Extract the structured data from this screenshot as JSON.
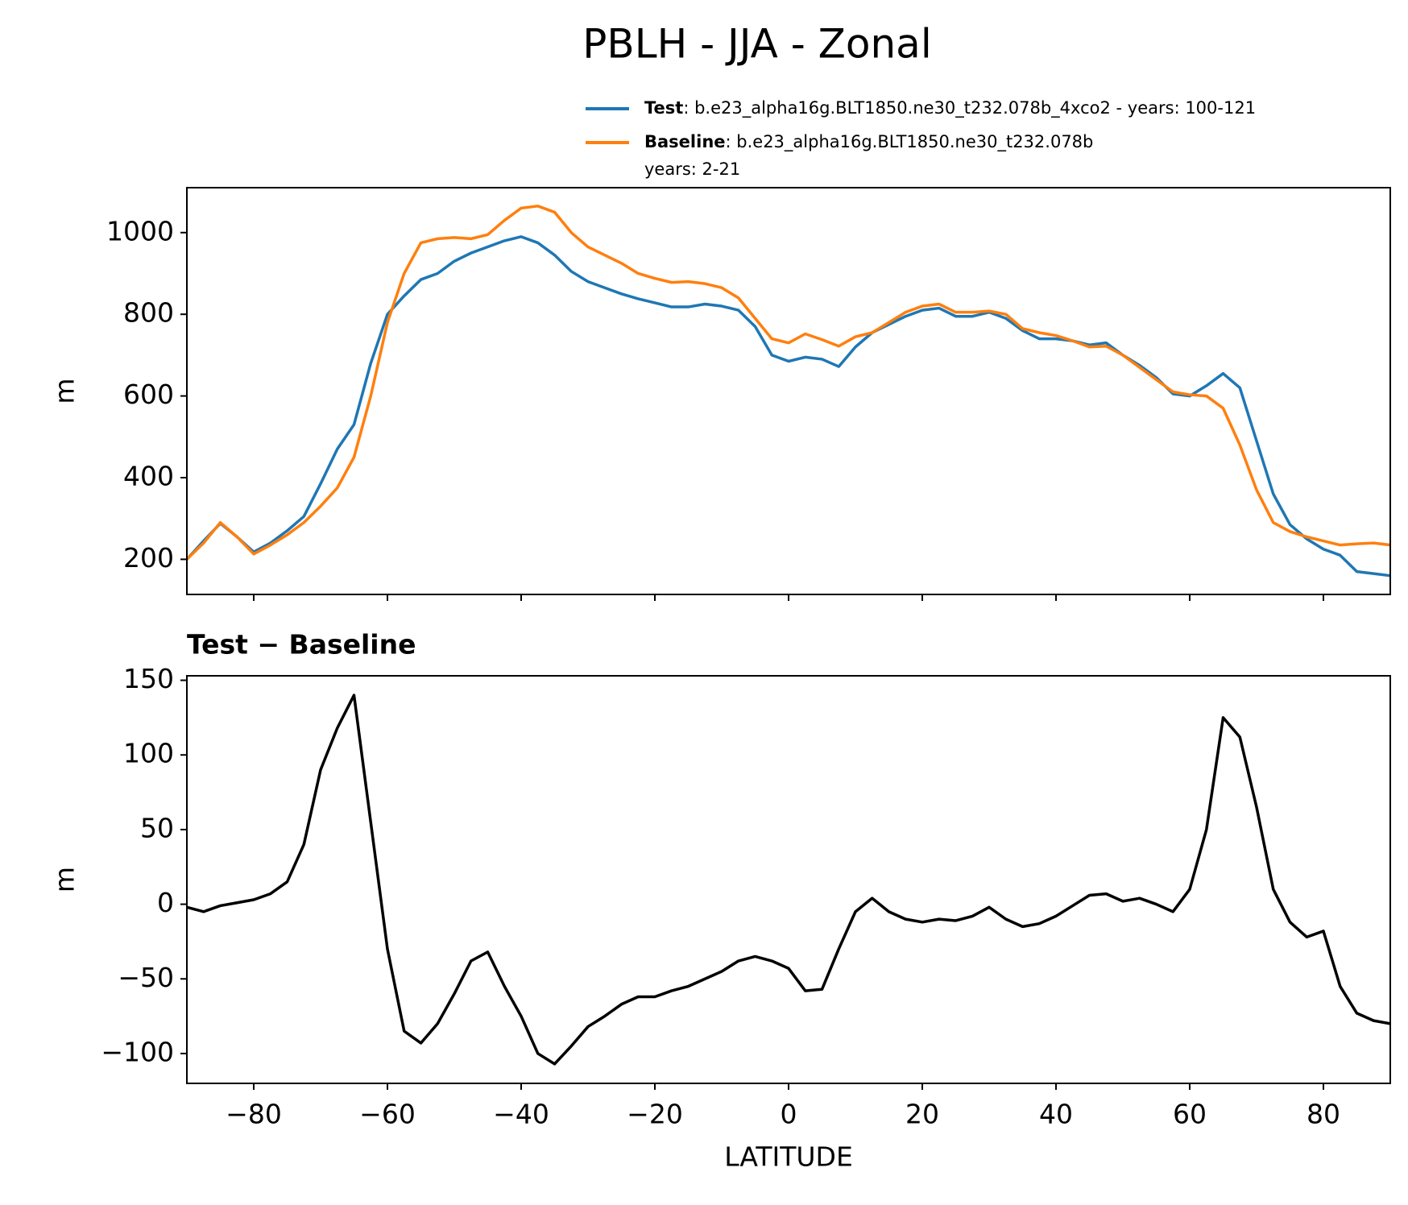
{
  "chart_data": [
    {
      "type": "line",
      "title": "PBLH - JJA - Zonal",
      "ylabel": "m",
      "x": [
        -90,
        -87.5,
        -85,
        -82.5,
        -80,
        -77.5,
        -75,
        -72.5,
        -70,
        -67.5,
        -65,
        -62.5,
        -60,
        -57.5,
        -55,
        -52.5,
        -50,
        -47.5,
        -45,
        -42.5,
        -40,
        -37.5,
        -35,
        -32.5,
        -30,
        -27.5,
        -25,
        -22.5,
        -20,
        -17.5,
        -15,
        -12.5,
        -10,
        -7.5,
        -5,
        -2.5,
        0,
        2.5,
        5,
        7.5,
        10,
        12.5,
        15,
        17.5,
        20,
        22.5,
        25,
        27.5,
        30,
        32.5,
        35,
        37.5,
        40,
        42.5,
        45,
        47.5,
        50,
        52.5,
        55,
        57.5,
        60,
        62.5,
        65,
        67.5,
        70,
        72.5,
        75,
        77.5,
        80,
        82.5,
        85,
        87.5,
        90
      ],
      "series": [
        {
          "name": "Test",
          "legend_text": [
            ": b.e23_alpha16g.BLT1850.ne30_t232.078b_4xco2 - years: 100-121"
          ],
          "color": "#1f77b4",
          "values": [
            200,
            245,
            288,
            255,
            218,
            240,
            270,
            305,
            385,
            470,
            530,
            680,
            800,
            845,
            885,
            900,
            930,
            950,
            965,
            980,
            990,
            975,
            945,
            905,
            880,
            865,
            850,
            838,
            828,
            818,
            818,
            825,
            820,
            810,
            770,
            700,
            685,
            695,
            690,
            672,
            720,
            755,
            775,
            795,
            810,
            815,
            795,
            795,
            805,
            790,
            760,
            740,
            740,
            735,
            725,
            730,
            700,
            675,
            645,
            605,
            600,
            625,
            655,
            620,
            490,
            360,
            285,
            250,
            225,
            210,
            170,
            165,
            160
          ]
        },
        {
          "name": "Baseline",
          "legend_text": [
            ": b.e23_alpha16g.BLT1850.ne30_t232.078b",
            "years: 2-21"
          ],
          "color": "#ff7f0e",
          "values": [
            200,
            240,
            290,
            255,
            213,
            235,
            260,
            290,
            330,
            375,
            450,
            600,
            780,
            900,
            975,
            985,
            988,
            985,
            995,
            1030,
            1060,
            1065,
            1050,
            1000,
            965,
            945,
            925,
            900,
            888,
            878,
            880,
            875,
            865,
            840,
            790,
            740,
            730,
            752,
            738,
            722,
            745,
            755,
            780,
            805,
            820,
            825,
            805,
            805,
            808,
            800,
            765,
            755,
            748,
            735,
            720,
            722,
            700,
            670,
            640,
            610,
            603,
            600,
            570,
            480,
            370,
            290,
            268,
            255,
            245,
            235,
            238,
            240,
            235
          ]
        }
      ],
      "xlim": [
        -90,
        90
      ],
      "xticks": [
        -80,
        -60,
        -40,
        -20,
        0,
        20,
        40,
        60,
        80
      ],
      "ylim": [
        114,
        1110
      ],
      "yticks": [
        200,
        400,
        600,
        800,
        1000
      ]
    },
    {
      "type": "line",
      "title": "Test − Baseline",
      "xlabel": "LATITUDE",
      "ylabel": "m",
      "color": "#000000",
      "x": [
        -90,
        -87.5,
        -85,
        -82.5,
        -80,
        -77.5,
        -75,
        -72.5,
        -70,
        -67.5,
        -65,
        -62.5,
        -60,
        -57.5,
        -55,
        -52.5,
        -50,
        -47.5,
        -45,
        -42.5,
        -40,
        -37.5,
        -35,
        -32.5,
        -30,
        -27.5,
        -25,
        -22.5,
        -20,
        -17.5,
        -15,
        -12.5,
        -10,
        -7.5,
        -5,
        -2.5,
        0,
        2.5,
        5,
        7.5,
        10,
        12.5,
        15,
        17.5,
        20,
        22.5,
        25,
        27.5,
        30,
        32.5,
        35,
        37.5,
        40,
        42.5,
        45,
        47.5,
        50,
        52.5,
        55,
        57.5,
        60,
        62.5,
        65,
        67.5,
        70,
        72.5,
        75,
        77.5,
        80,
        82.5,
        85,
        87.5,
        90
      ],
      "values": [
        -2,
        -5,
        -1,
        1,
        3,
        7,
        15,
        40,
        90,
        118,
        140,
        55,
        -30,
        -85,
        -93,
        -80,
        -60,
        -38,
        -32,
        -55,
        -75,
        -100,
        -107,
        -95,
        -82,
        -75,
        -67,
        -62,
        -62,
        -58,
        -55,
        -50,
        -45,
        -38,
        -35,
        -38,
        -43,
        -58,
        -57,
        -30,
        -5,
        4,
        -5,
        -10,
        -12,
        -10,
        -11,
        -8,
        -2,
        -10,
        -15,
        -13,
        -8,
        -1,
        6,
        7,
        2,
        4,
        0,
        -5,
        10,
        50,
        125,
        112,
        65,
        10,
        -12,
        -22,
        -18,
        -55,
        -73,
        -78,
        -80
      ],
      "xlim": [
        -90,
        90
      ],
      "xticks": [
        {
          "value": -80,
          "label": "−80"
        },
        {
          "value": -60,
          "label": "−60"
        },
        {
          "value": -40,
          "label": "−40"
        },
        {
          "value": -20,
          "label": "−20"
        },
        0,
        20,
        40,
        60,
        80
      ],
      "ylim": [
        -120,
        153
      ],
      "yticks": [
        {
          "value": -100,
          "label": "−100"
        },
        {
          "value": -50,
          "label": "−50"
        },
        0,
        50,
        100,
        150
      ]
    }
  ]
}
